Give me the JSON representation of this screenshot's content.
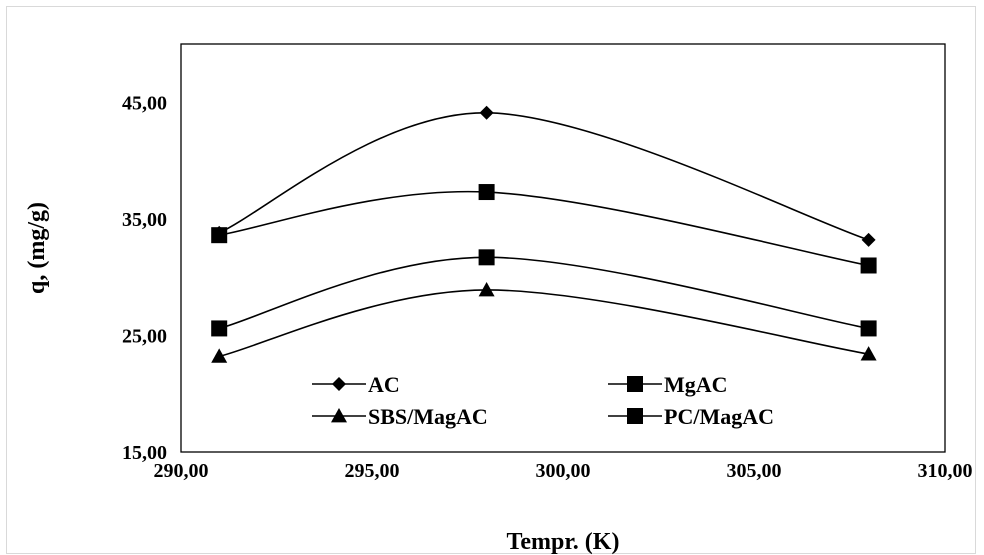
{
  "chart_data": {
    "type": "line",
    "xlabel": "Tempr. (K)",
    "ylabel": "q, (mg/g)",
    "xlim": [
      290,
      310
    ],
    "ylim": [
      15,
      50
    ],
    "x_ticks": [
      "290,00",
      "295,00",
      "300,00",
      "305,00",
      "310,00"
    ],
    "y_ticks": [
      "15,00",
      "25,00",
      "35,00",
      "45,00"
    ],
    "grid": false,
    "legend_position": "bottom-inside",
    "series": [
      {
        "name": "AC",
        "marker": "diamond",
        "color": "#000000",
        "x": [
          291,
          298,
          308
        ],
        "y": [
          33.8,
          44.1,
          33.2
        ]
      },
      {
        "name": "MgAC",
        "marker": "square",
        "color": "#000000",
        "x": [
          291,
          298,
          308
        ],
        "y": [
          25.6,
          31.7,
          25.6
        ]
      },
      {
        "name": "SBS/MagAC",
        "marker": "triangle",
        "color": "#000000",
        "x": [
          291,
          298,
          308
        ],
        "y": [
          23.2,
          28.9,
          23.4
        ]
      },
      {
        "name": "PC/MagAC",
        "marker": "square",
        "color": "#000000",
        "x": [
          291,
          298,
          308
        ],
        "y": [
          33.6,
          37.3,
          31.0
        ]
      }
    ]
  }
}
